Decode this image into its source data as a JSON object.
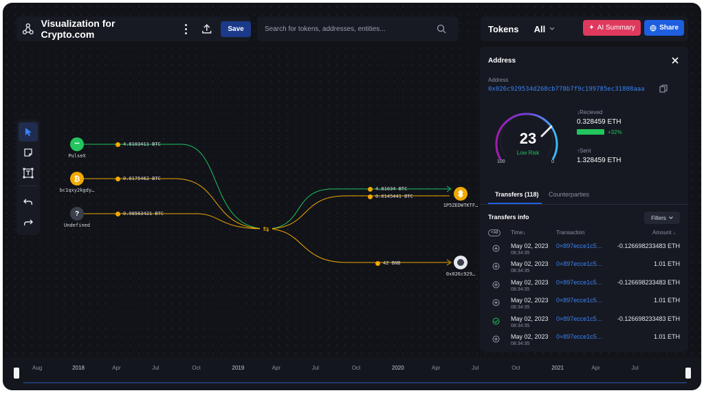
{
  "header": {
    "title": "Visualization for Crypto.com",
    "save_label": "Save"
  },
  "search": {
    "placeholder": "Search for tokens, addresses, entities..."
  },
  "tokens_bar": {
    "label": "Tokens",
    "selected": "All",
    "ai_summary_label": "AI Summary",
    "share_label": "Share"
  },
  "graph": {
    "nodes": {
      "pulsex": "PulseX",
      "bc1": "bc1qxy2kgdy…",
      "undefined": "Undefined",
      "dest1": "1P5ZEDWTKTF…",
      "dest2": "0x026c929…",
      "undefined_glyph": "?",
      "pulsex_glyph": "•••"
    },
    "amounts": {
      "a1": "4.8103411 BTC",
      "a2": "0.0175462 BTC",
      "a3": "0.98563421 BTC",
      "a4": "4.81034 BTC",
      "a5": "0.0145441 BTC",
      "a6": "42 BNB"
    }
  },
  "address_panel": {
    "header": "Address",
    "sub_label": "Address",
    "hash": "0x026c929534d268cb778b7f9c199785ec31808aaa",
    "risk_score": "23",
    "risk_label": "Low Risk",
    "gauge_min": "100",
    "gauge_max": "0",
    "received_label": "↓Recieved",
    "received_value": "0.328459 ETH",
    "received_change": "+32%",
    "sent_label": "↑Sent",
    "sent_value": "1.328459 ETH",
    "tab_transfers": "Transfers (118)",
    "tab_counterparties": "Counterparties",
    "transfers_info": "Transfers info",
    "filters_label": "Filters",
    "col_all": "+All",
    "col_time": "Time↓",
    "col_tx": "Transaction",
    "col_amount": "Amount ↓",
    "rows": [
      {
        "status": "plus",
        "date": "May 02, 2023",
        "time": "08:34:35",
        "tx": "0×897ecce1c5…",
        "amount": "-0.126698233483 ETH"
      },
      {
        "status": "plus",
        "date": "May 02, 2023",
        "time": "08:34:35",
        "tx": "0×897ecce1c5…",
        "amount": "1.01 ETH"
      },
      {
        "status": "plus",
        "date": "May 02, 2023",
        "time": "08:34:35",
        "tx": "0×897ecce1c5…",
        "amount": "-0.126698233483 ETH"
      },
      {
        "status": "plus",
        "date": "May 02, 2023",
        "time": "08:34:35",
        "tx": "0×897ecce1c5…",
        "amount": "1.01 ETH"
      },
      {
        "status": "check",
        "date": "May 02, 2023",
        "time": "08:34:35",
        "tx": "0×897ecce1c5…",
        "amount": "-0.126698233483 ETH"
      },
      {
        "status": "plus",
        "date": "May 02, 2023",
        "time": "08:34:35",
        "tx": "0×897ecce1c5…",
        "amount": "1.01 ETH"
      }
    ]
  },
  "timeline": {
    "labels": [
      "Aug",
      "2018",
      "Apr",
      "Jul",
      "Oct",
      "2019",
      "Apr",
      "Jul",
      "Oct",
      "2020",
      "Apr",
      "Jul",
      "Oct",
      "2021",
      "Apr",
      "Jul"
    ]
  },
  "colors": {
    "accent_blue": "#1d5fe0",
    "ai_pink": "#e0395e",
    "flow_green": "#22c55e",
    "flow_yellow": "#f2a900",
    "link_blue": "#3b82f6"
  }
}
